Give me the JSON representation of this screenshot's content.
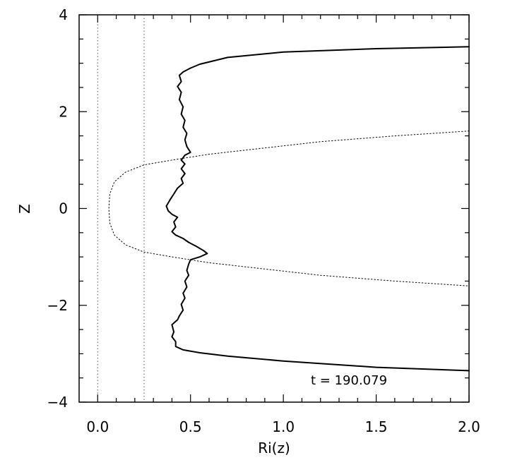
{
  "chart_data": {
    "type": "line",
    "xlabel": "Ri(z)",
    "ylabel": "Z",
    "xlim": [
      -0.1,
      2.0
    ],
    "ylim": [
      -4,
      4
    ],
    "x_ticks": [
      0.0,
      0.5,
      1.0,
      1.5,
      2.0
    ],
    "x_tick_labels": [
      "0.0",
      "0.5",
      "1.0",
      "1.5",
      "2.0"
    ],
    "y_ticks": [
      -4,
      -2,
      0,
      2,
      4
    ],
    "y_tick_labels": [
      "−4",
      "−2",
      "0",
      "2",
      "4"
    ],
    "grid": false,
    "annotation": "t  =  190.079",
    "reference_lines_x": [
      0.0,
      0.25
    ],
    "series": [
      {
        "style": "solid",
        "color": "#000000",
        "points": [
          [
            2.0,
            3.34
          ],
          [
            1.5,
            3.3
          ],
          [
            1.0,
            3.23
          ],
          [
            0.7,
            3.12
          ],
          [
            0.55,
            2.98
          ],
          [
            0.5,
            2.9
          ],
          [
            0.46,
            2.82
          ],
          [
            0.44,
            2.75
          ],
          [
            0.45,
            2.62
          ],
          [
            0.43,
            2.52
          ],
          [
            0.45,
            2.4
          ],
          [
            0.44,
            2.25
          ],
          [
            0.46,
            2.1
          ],
          [
            0.45,
            1.95
          ],
          [
            0.47,
            1.82
          ],
          [
            0.46,
            1.68
          ],
          [
            0.48,
            1.55
          ],
          [
            0.47,
            1.42
          ],
          [
            0.48,
            1.28
          ],
          [
            0.5,
            1.16
          ],
          [
            0.47,
            1.1
          ],
          [
            0.45,
            1.0
          ],
          [
            0.47,
            0.92
          ],
          [
            0.45,
            0.82
          ],
          [
            0.47,
            0.72
          ],
          [
            0.45,
            0.62
          ],
          [
            0.46,
            0.52
          ],
          [
            0.43,
            0.42
          ],
          [
            0.41,
            0.3
          ],
          [
            0.39,
            0.18
          ],
          [
            0.37,
            0.05
          ],
          [
            0.38,
            -0.05
          ],
          [
            0.4,
            -0.12
          ],
          [
            0.43,
            -0.18
          ],
          [
            0.41,
            -0.28
          ],
          [
            0.42,
            -0.38
          ],
          [
            0.4,
            -0.48
          ],
          [
            0.42,
            -0.55
          ],
          [
            0.46,
            -0.62
          ],
          [
            0.49,
            -0.7
          ],
          [
            0.53,
            -0.78
          ],
          [
            0.57,
            -0.87
          ],
          [
            0.59,
            -0.93
          ],
          [
            0.55,
            -1.0
          ],
          [
            0.5,
            -1.06
          ],
          [
            0.49,
            -1.15
          ],
          [
            0.48,
            -1.28
          ],
          [
            0.49,
            -1.38
          ],
          [
            0.47,
            -1.5
          ],
          [
            0.48,
            -1.62
          ],
          [
            0.46,
            -1.75
          ],
          [
            0.47,
            -1.85
          ],
          [
            0.45,
            -1.98
          ],
          [
            0.46,
            -2.1
          ],
          [
            0.44,
            -2.22
          ],
          [
            0.43,
            -2.3
          ],
          [
            0.4,
            -2.4
          ],
          [
            0.41,
            -2.55
          ],
          [
            0.4,
            -2.65
          ],
          [
            0.42,
            -2.75
          ],
          [
            0.42,
            -2.85
          ],
          [
            0.46,
            -2.92
          ],
          [
            0.55,
            -2.98
          ],
          [
            0.7,
            -3.05
          ],
          [
            1.0,
            -3.15
          ],
          [
            1.5,
            -3.28
          ],
          [
            2.0,
            -3.35
          ]
        ]
      },
      {
        "style": "dotted",
        "color": "#000000",
        "points": [
          [
            2.0,
            1.6
          ],
          [
            1.6,
            1.5
          ],
          [
            1.2,
            1.38
          ],
          [
            0.9,
            1.25
          ],
          [
            0.6,
            1.12
          ],
          [
            0.4,
            1.0
          ],
          [
            0.25,
            0.9
          ],
          [
            0.15,
            0.75
          ],
          [
            0.09,
            0.55
          ],
          [
            0.065,
            0.3
          ],
          [
            0.06,
            0.0
          ],
          [
            0.065,
            -0.3
          ],
          [
            0.09,
            -0.55
          ],
          [
            0.15,
            -0.75
          ],
          [
            0.25,
            -0.9
          ],
          [
            0.4,
            -1.0
          ],
          [
            0.6,
            -1.12
          ],
          [
            0.9,
            -1.25
          ],
          [
            1.2,
            -1.38
          ],
          [
            1.6,
            -1.5
          ],
          [
            2.0,
            -1.6
          ]
        ]
      }
    ]
  }
}
